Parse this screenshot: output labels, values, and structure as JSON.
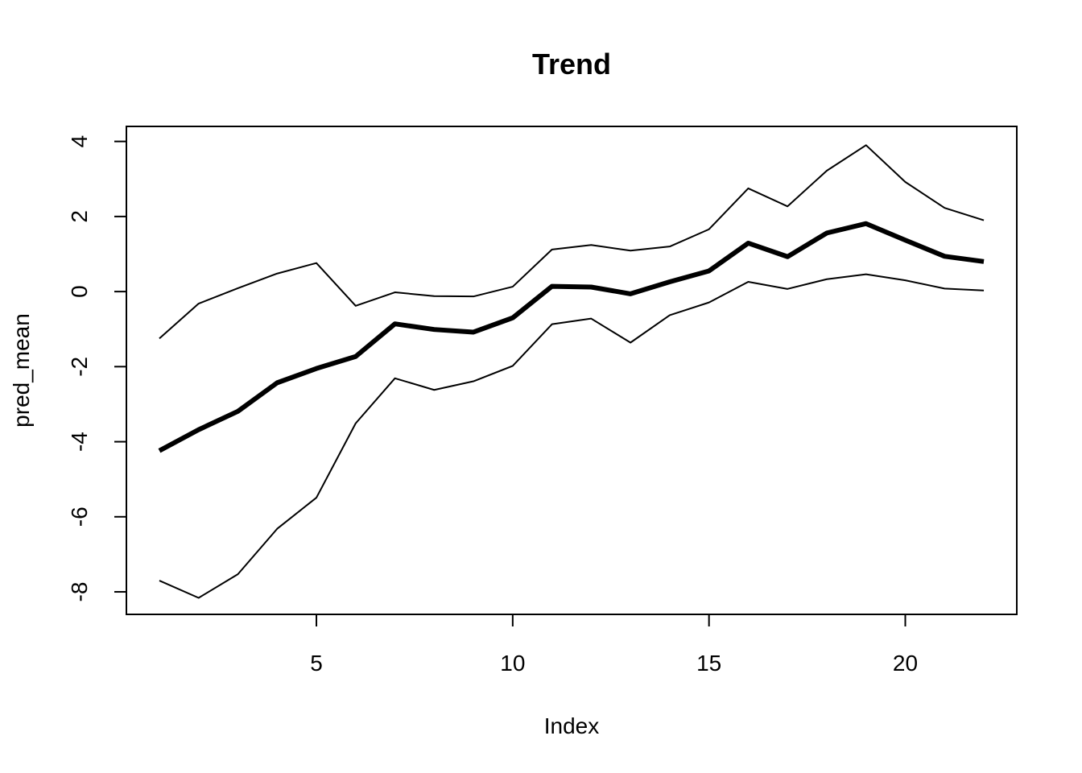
{
  "chart_data": {
    "type": "line",
    "title": "Trend",
    "xlabel": "Index",
    "ylabel": "pred_mean",
    "x": [
      1,
      2,
      3,
      4,
      5,
      6,
      7,
      8,
      9,
      10,
      11,
      12,
      13,
      14,
      15,
      16,
      17,
      18,
      19,
      20,
      21,
      22
    ],
    "xlim": [
      0.16,
      22.84
    ],
    "ylim": [
      -8.6,
      4.4
    ],
    "xticks": [
      5,
      10,
      15,
      20
    ],
    "yticks": [
      -8,
      -6,
      -4,
      -2,
      0,
      2,
      4
    ],
    "grid": false,
    "legend": "none",
    "series": [
      {
        "key": "upper",
        "values": [
          -1.25,
          -0.32,
          0.09,
          0.48,
          0.76,
          -0.38,
          -0.02,
          -0.12,
          -0.13,
          0.13,
          1.12,
          1.24,
          1.09,
          1.2,
          1.66,
          2.75,
          2.27,
          3.22,
          3.9,
          2.92,
          2.23,
          1.9
        ],
        "color": "#000000",
        "weight": "thin"
      },
      {
        "key": "mean",
        "values": [
          -4.24,
          -3.68,
          -3.19,
          -2.43,
          -2.05,
          -1.73,
          -0.86,
          -1.01,
          -1.08,
          -0.7,
          0.14,
          0.12,
          -0.06,
          0.26,
          0.55,
          1.29,
          0.93,
          1.56,
          1.81,
          1.37,
          0.94,
          0.8
        ],
        "color": "#000000",
        "weight": "thick"
      },
      {
        "key": "lower",
        "values": [
          -7.7,
          -8.16,
          -7.53,
          -6.32,
          -5.49,
          -3.51,
          -2.31,
          -2.62,
          -2.39,
          -1.98,
          -0.87,
          -0.72,
          -1.36,
          -0.63,
          -0.29,
          0.26,
          0.07,
          0.33,
          0.46,
          0.3,
          0.08,
          0.03
        ],
        "color": "#000000",
        "weight": "thin"
      }
    ]
  }
}
